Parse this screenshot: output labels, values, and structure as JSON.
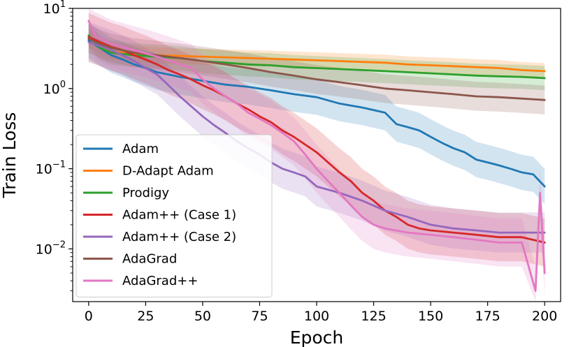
{
  "chart_data": {
    "type": "line",
    "title": "",
    "xlabel": "Epoch",
    "ylabel": "Train Loss",
    "xlim": [
      -7,
      207
    ],
    "ylim": [
      0.0022,
      10
    ],
    "yscale": "log",
    "grid": false,
    "legend_position": "lower-left",
    "x_ticks": [
      0,
      25,
      50,
      75,
      100,
      125,
      150,
      175,
      200
    ],
    "y_ticks": [
      {
        "value": 10,
        "base": "10",
        "exp": "1"
      },
      {
        "value": 1,
        "base": "10",
        "exp": "0"
      },
      {
        "value": 0.1,
        "base": "10",
        "exp": "−1"
      },
      {
        "value": 0.01,
        "base": "10",
        "exp": "−2"
      }
    ],
    "series": [
      {
        "name": "Adam",
        "color": "#1f77b4",
        "points": [
          [
            0,
            4.0
          ],
          [
            5,
            3.2
          ],
          [
            10,
            2.6
          ],
          [
            15,
            2.3
          ],
          [
            20,
            2.0
          ],
          [
            25,
            1.8
          ],
          [
            30,
            1.6
          ],
          [
            40,
            1.4
          ],
          [
            50,
            1.25
          ],
          [
            60,
            1.12
          ],
          [
            70,
            1.05
          ],
          [
            80,
            0.95
          ],
          [
            90,
            0.85
          ],
          [
            100,
            0.78
          ],
          [
            110,
            0.65
          ],
          [
            120,
            0.58
          ],
          [
            130,
            0.5
          ],
          [
            135,
            0.36
          ],
          [
            140,
            0.33
          ],
          [
            145,
            0.3
          ],
          [
            150,
            0.25
          ],
          [
            155,
            0.21
          ],
          [
            160,
            0.18
          ],
          [
            165,
            0.16
          ],
          [
            170,
            0.13
          ],
          [
            175,
            0.12
          ],
          [
            180,
            0.11
          ],
          [
            185,
            0.1
          ],
          [
            190,
            0.09
          ],
          [
            195,
            0.085
          ],
          [
            200,
            0.06
          ]
        ],
        "band": 0.22
      },
      {
        "name": "D-Adapt Adam",
        "color": "#ff7f0e",
        "points": [
          [
            0,
            4.3
          ],
          [
            5,
            3.3
          ],
          [
            10,
            2.9
          ],
          [
            20,
            2.7
          ],
          [
            30,
            2.6
          ],
          [
            40,
            2.55
          ],
          [
            50,
            2.5
          ],
          [
            60,
            2.45
          ],
          [
            70,
            2.4
          ],
          [
            80,
            2.35
          ],
          [
            90,
            2.3
          ],
          [
            100,
            2.25
          ],
          [
            110,
            2.2
          ],
          [
            120,
            2.15
          ],
          [
            130,
            2.1
          ],
          [
            140,
            2.0
          ],
          [
            150,
            1.95
          ],
          [
            160,
            1.9
          ],
          [
            170,
            1.85
          ],
          [
            180,
            1.8
          ],
          [
            190,
            1.7
          ],
          [
            200,
            1.65
          ]
        ],
        "band": 0.1
      },
      {
        "name": "Prodigy",
        "color": "#2ca02c",
        "points": [
          [
            0,
            4.6
          ],
          [
            5,
            3.2
          ],
          [
            10,
            2.8
          ],
          [
            20,
            2.6
          ],
          [
            30,
            2.5
          ],
          [
            40,
            2.4
          ],
          [
            50,
            2.2
          ],
          [
            60,
            2.1
          ],
          [
            70,
            2.0
          ],
          [
            80,
            1.95
          ],
          [
            90,
            1.85
          ],
          [
            100,
            1.8
          ],
          [
            110,
            1.75
          ],
          [
            120,
            1.7
          ],
          [
            130,
            1.65
          ],
          [
            140,
            1.6
          ],
          [
            150,
            1.55
          ],
          [
            160,
            1.5
          ],
          [
            170,
            1.45
          ],
          [
            180,
            1.42
          ],
          [
            190,
            1.4
          ],
          [
            200,
            1.35
          ]
        ],
        "band": 0.15
      },
      {
        "name": "Adam++ (Case 1)",
        "color": "#d62728",
        "points": [
          [
            0,
            4.4
          ],
          [
            5,
            3.8
          ],
          [
            10,
            3.3
          ],
          [
            15,
            3.0
          ],
          [
            20,
            2.6
          ],
          [
            25,
            2.3
          ],
          [
            30,
            2.0
          ],
          [
            35,
            1.7
          ],
          [
            40,
            1.5
          ],
          [
            45,
            1.3
          ],
          [
            50,
            1.1
          ],
          [
            55,
            0.95
          ],
          [
            60,
            0.8
          ],
          [
            65,
            0.65
          ],
          [
            70,
            0.55
          ],
          [
            75,
            0.45
          ],
          [
            80,
            0.38
          ],
          [
            85,
            0.3
          ],
          [
            90,
            0.25
          ],
          [
            95,
            0.2
          ],
          [
            100,
            0.16
          ],
          [
            105,
            0.12
          ],
          [
            110,
            0.09
          ],
          [
            115,
            0.07
          ],
          [
            120,
            0.05
          ],
          [
            125,
            0.04
          ],
          [
            130,
            0.03
          ],
          [
            135,
            0.025
          ],
          [
            140,
            0.02
          ],
          [
            145,
            0.018
          ],
          [
            150,
            0.017
          ],
          [
            160,
            0.016
          ],
          [
            170,
            0.015
          ],
          [
            180,
            0.014
          ],
          [
            190,
            0.014
          ],
          [
            200,
            0.012
          ]
        ],
        "band": 0.3
      },
      {
        "name": "Adam++ (Case 2)",
        "color": "#9467bd",
        "points": [
          [
            0,
            3.8
          ],
          [
            5,
            3.4
          ],
          [
            10,
            3.0
          ],
          [
            15,
            2.6
          ],
          [
            20,
            2.2
          ],
          [
            25,
            1.8
          ],
          [
            30,
            1.5
          ],
          [
            35,
            1.1
          ],
          [
            40,
            0.8
          ],
          [
            45,
            0.6
          ],
          [
            50,
            0.45
          ],
          [
            55,
            0.35
          ],
          [
            60,
            0.28
          ],
          [
            65,
            0.22
          ],
          [
            70,
            0.18
          ],
          [
            75,
            0.15
          ],
          [
            80,
            0.12
          ],
          [
            85,
            0.1
          ],
          [
            90,
            0.09
          ],
          [
            95,
            0.08
          ],
          [
            100,
            0.06
          ],
          [
            110,
            0.05
          ],
          [
            120,
            0.04
          ],
          [
            130,
            0.03
          ],
          [
            140,
            0.025
          ],
          [
            150,
            0.02
          ],
          [
            160,
            0.018
          ],
          [
            170,
            0.017
          ],
          [
            180,
            0.016
          ],
          [
            190,
            0.016
          ],
          [
            200,
            0.016
          ]
        ],
        "band": 0.25
      },
      {
        "name": "AdaGrad",
        "color": "#8c564b",
        "points": [
          [
            0,
            4.2
          ],
          [
            5,
            3.6
          ],
          [
            10,
            3.2
          ],
          [
            20,
            2.8
          ],
          [
            30,
            2.6
          ],
          [
            40,
            2.4
          ],
          [
            50,
            2.2
          ],
          [
            60,
            2.0
          ],
          [
            70,
            1.8
          ],
          [
            80,
            1.6
          ],
          [
            90,
            1.45
          ],
          [
            100,
            1.3
          ],
          [
            110,
            1.2
          ],
          [
            120,
            1.1
          ],
          [
            130,
            1.0
          ],
          [
            140,
            0.95
          ],
          [
            150,
            0.9
          ],
          [
            160,
            0.85
          ],
          [
            170,
            0.8
          ],
          [
            180,
            0.78
          ],
          [
            190,
            0.75
          ],
          [
            200,
            0.72
          ]
        ],
        "band": 0.18
      },
      {
        "name": "AdaGrad++",
        "color": "#e377c2",
        "points": [
          [
            0,
            7.0
          ],
          [
            3,
            4.5
          ],
          [
            10,
            3.6
          ],
          [
            20,
            3.0
          ],
          [
            30,
            2.5
          ],
          [
            40,
            2.0
          ],
          [
            45,
            1.8
          ],
          [
            50,
            1.3
          ],
          [
            55,
            1.0
          ],
          [
            60,
            0.8
          ],
          [
            65,
            0.65
          ],
          [
            70,
            0.5
          ],
          [
            75,
            0.42
          ],
          [
            80,
            0.35
          ],
          [
            85,
            0.28
          ],
          [
            90,
            0.22
          ],
          [
            95,
            0.15
          ],
          [
            100,
            0.1
          ],
          [
            105,
            0.07
          ],
          [
            110,
            0.05
          ],
          [
            115,
            0.035
          ],
          [
            120,
            0.025
          ],
          [
            125,
            0.02
          ],
          [
            130,
            0.018
          ],
          [
            140,
            0.016
          ],
          [
            150,
            0.015
          ],
          [
            160,
            0.014
          ],
          [
            170,
            0.013
          ],
          [
            180,
            0.012
          ],
          [
            190,
            0.012
          ],
          [
            196,
            0.003
          ],
          [
            198,
            0.05
          ],
          [
            200,
            0.005
          ]
        ],
        "band": 0.3
      }
    ]
  }
}
